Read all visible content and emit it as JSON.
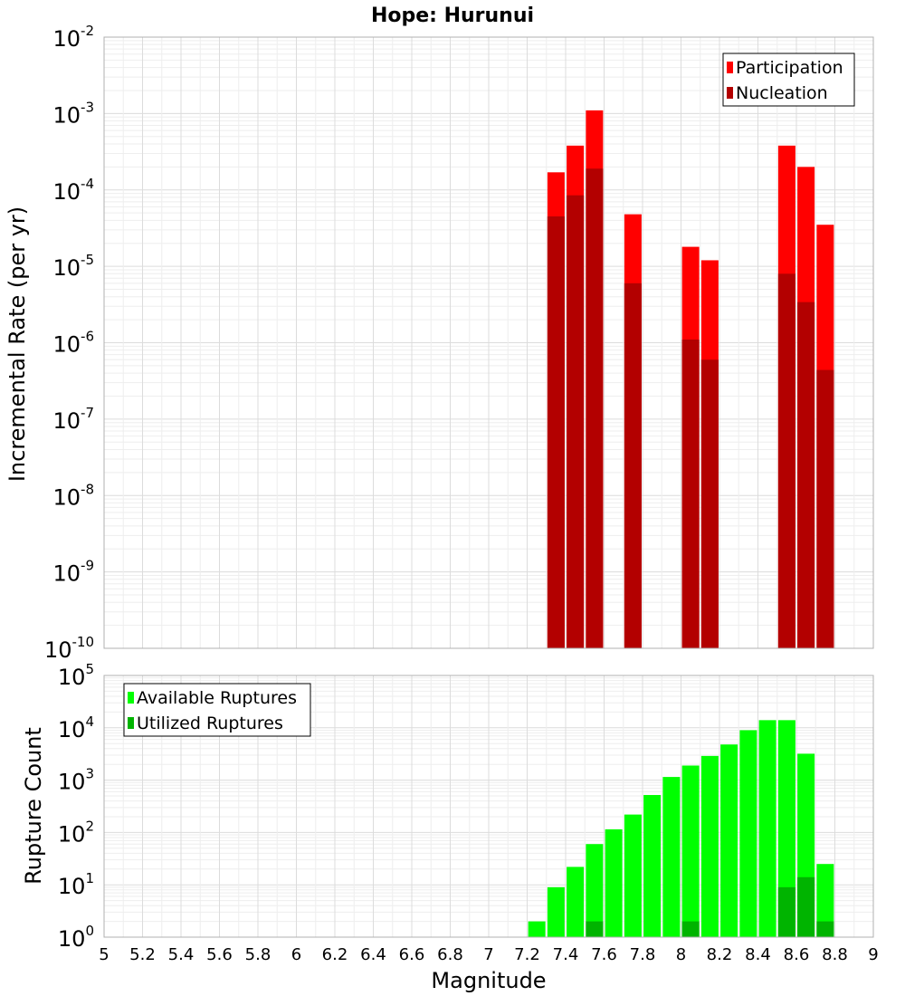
{
  "figure": {
    "title": "Hope: Hurunui",
    "xlabel": "Magnitude"
  },
  "chart_data": [
    {
      "type": "bar",
      "scale": "log",
      "ylabel": "Incremental Rate (per yr)",
      "ylim_exp": [
        -10,
        -2
      ],
      "xlim": [
        5,
        9
      ],
      "grid": true,
      "legend_position": "top-right",
      "series": [
        {
          "name": "Participation",
          "color": "#ff0000",
          "points": [
            {
              "x": 7.35,
              "y": 0.00017
            },
            {
              "x": 7.45,
              "y": 0.00038
            },
            {
              "x": 7.55,
              "y": 0.0011
            },
            {
              "x": 7.75,
              "y": 4.8e-05
            },
            {
              "x": 8.05,
              "y": 1.8e-05
            },
            {
              "x": 8.15,
              "y": 1.2e-05
            },
            {
              "x": 8.55,
              "y": 0.00038
            },
            {
              "x": 8.65,
              "y": 0.0002
            },
            {
              "x": 8.75,
              "y": 3.5e-05
            }
          ]
        },
        {
          "name": "Nucleation",
          "color": "#b30000",
          "points": [
            {
              "x": 7.35,
              "y": 4.5e-05
            },
            {
              "x": 7.45,
              "y": 8.5e-05
            },
            {
              "x": 7.55,
              "y": 0.00019
            },
            {
              "x": 7.75,
              "y": 6e-06
            },
            {
              "x": 8.05,
              "y": 1.1e-06
            },
            {
              "x": 8.15,
              "y": 6e-07
            },
            {
              "x": 8.55,
              "y": 8e-06
            },
            {
              "x": 8.65,
              "y": 3.4e-06
            },
            {
              "x": 8.75,
              "y": 4.4e-07
            }
          ]
        }
      ]
    },
    {
      "type": "bar",
      "scale": "log",
      "ylabel": "Rupture Count",
      "ylim_exp": [
        0,
        5
      ],
      "xlim": [
        5,
        9
      ],
      "grid": true,
      "legend_position": "top-left",
      "series": [
        {
          "name": "Available Ruptures",
          "color": "#00ff00",
          "points": [
            {
              "x": 6.85,
              "y": 1
            },
            {
              "x": 7.25,
              "y": 2
            },
            {
              "x": 7.35,
              "y": 9
            },
            {
              "x": 7.45,
              "y": 22
            },
            {
              "x": 7.55,
              "y": 60
            },
            {
              "x": 7.65,
              "y": 115
            },
            {
              "x": 7.75,
              "y": 220
            },
            {
              "x": 7.85,
              "y": 520
            },
            {
              "x": 7.95,
              "y": 1150
            },
            {
              "x": 8.05,
              "y": 1900
            },
            {
              "x": 8.15,
              "y": 2900
            },
            {
              "x": 8.25,
              "y": 4800
            },
            {
              "x": 8.35,
              "y": 9000
            },
            {
              "x": 8.45,
              "y": 14000
            },
            {
              "x": 8.55,
              "y": 14000
            },
            {
              "x": 8.65,
              "y": 3200
            },
            {
              "x": 8.75,
              "y": 25
            }
          ]
        },
        {
          "name": "Utilized Ruptures",
          "color": "#00b400",
          "points": [
            {
              "x": 7.35,
              "y": 1
            },
            {
              "x": 7.45,
              "y": 1
            },
            {
              "x": 7.55,
              "y": 2
            },
            {
              "x": 7.75,
              "y": 1
            },
            {
              "x": 8.05,
              "y": 2
            },
            {
              "x": 8.15,
              "y": 1
            },
            {
              "x": 8.55,
              "y": 9
            },
            {
              "x": 8.65,
              "y": 14
            },
            {
              "x": 8.75,
              "y": 2
            }
          ]
        }
      ]
    }
  ],
  "x_ticks": [
    "5",
    "5.2",
    "5.4",
    "5.6",
    "5.8",
    "6",
    "6.2",
    "6.4",
    "6.6",
    "6.8",
    "7",
    "7.2",
    "7.4",
    "7.6",
    "7.8",
    "8",
    "8.2",
    "8.4",
    "8.6",
    "8.8",
    "9"
  ]
}
